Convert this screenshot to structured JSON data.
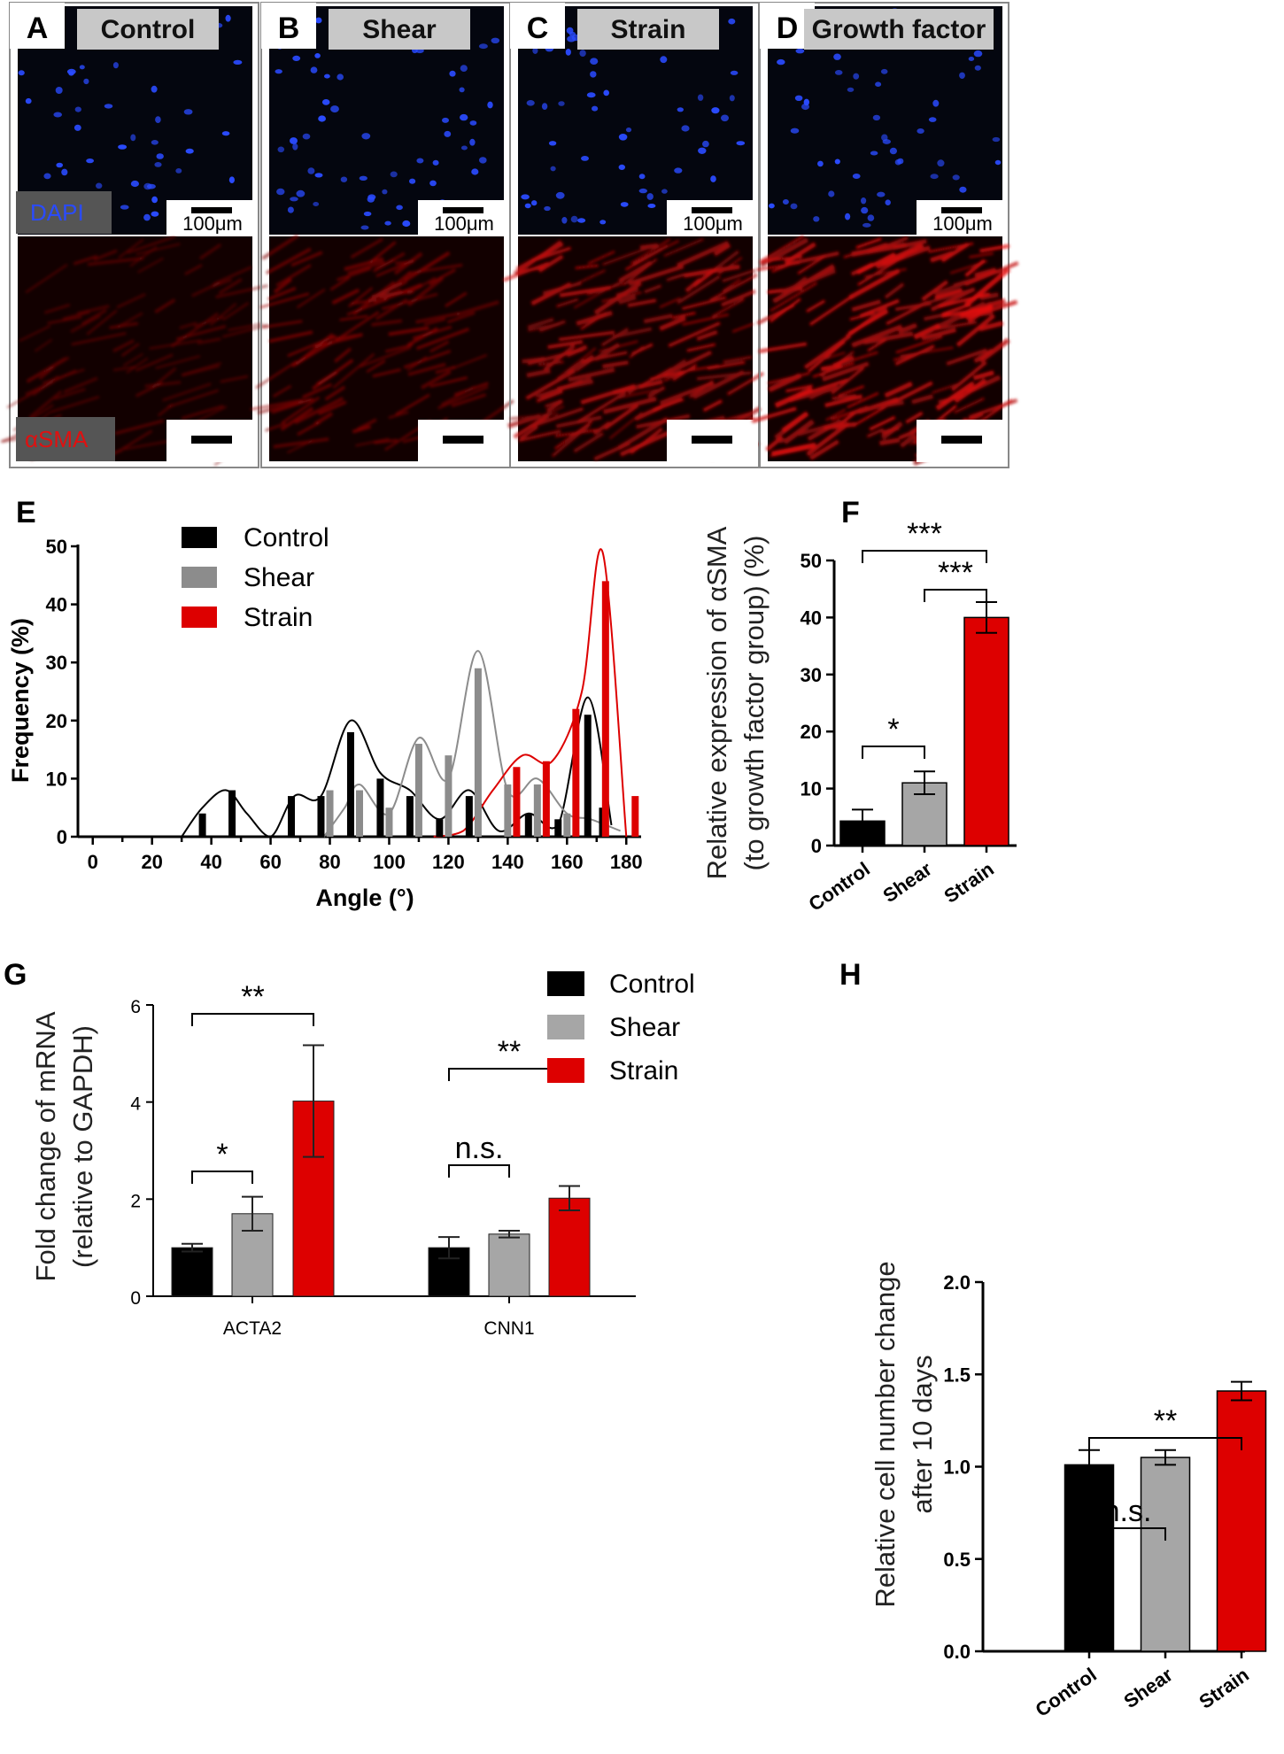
{
  "panels": {
    "top": [
      {
        "letter": "A",
        "title": "Control",
        "nuc": 55,
        "red": 0.35
      },
      {
        "letter": "B",
        "title": "Shear",
        "nuc": 60,
        "red": 0.55
      },
      {
        "letter": "C",
        "title": "Strain",
        "nuc": 65,
        "red": 0.85
      },
      {
        "letter": "D",
        "title": "Growth factor",
        "nuc": 58,
        "red": 1.0
      }
    ],
    "stain_dapi": "DAPI",
    "stain_asma": "αSMA",
    "scale_label": "100μm",
    "colors": {
      "dapi": "#2a4bff",
      "asma": "#e01010",
      "dark": "#04060f"
    }
  },
  "letters": {
    "E": "E",
    "F": "F",
    "G": "G",
    "H": "H"
  },
  "chart_data": [
    {
      "id": "E",
      "type": "bar",
      "xlabel": "Angle (°)",
      "ylabel": "Frequency (%)",
      "xlim": [
        -5,
        185
      ],
      "ylim": [
        0,
        50
      ],
      "xticks": [
        0,
        20,
        40,
        60,
        80,
        100,
        120,
        140,
        160,
        180
      ],
      "yticks": [
        0,
        10,
        20,
        30,
        40,
        50
      ],
      "legend": [
        "Control",
        "Shear",
        "Strain"
      ],
      "colors": [
        "#000000",
        "#8c8c8c",
        "#dd0000"
      ],
      "series": [
        {
          "name": "Control",
          "x": [
            37,
            47,
            67,
            77,
            87,
            97,
            107,
            117,
            127,
            147,
            157,
            167,
            172
          ],
          "values": [
            4,
            8,
            7,
            7,
            18,
            10,
            7,
            3,
            7,
            4,
            3,
            21,
            5
          ]
        },
        {
          "name": "Shear",
          "x": [
            80,
            90,
            100,
            110,
            120,
            130,
            140,
            150,
            160
          ],
          "values": [
            8,
            8,
            5,
            16,
            14,
            29,
            9,
            9,
            4
          ]
        },
        {
          "name": "Strain",
          "x": [
            143,
            153,
            163,
            173,
            183
          ],
          "values": [
            12,
            13,
            22,
            44,
            7
          ]
        }
      ],
      "curves": [
        {
          "name": "Control",
          "x": [
            30,
            37,
            45,
            52,
            60,
            68,
            77,
            87,
            97,
            107,
            117,
            127,
            137,
            147,
            157,
            167,
            175
          ],
          "y": [
            0,
            5,
            8,
            4,
            0,
            7,
            7,
            20,
            11,
            8,
            3,
            8,
            1,
            4,
            2,
            24,
            2
          ]
        },
        {
          "name": "Shear",
          "x": [
            78,
            85,
            90,
            100,
            110,
            120,
            130,
            140,
            150,
            160,
            168,
            178
          ],
          "y": [
            0,
            5,
            9,
            4,
            17,
            10,
            32,
            8,
            10,
            4,
            3,
            1
          ]
        },
        {
          "name": "Strain",
          "x": [
            115,
            125,
            135,
            145,
            155,
            165,
            172,
            180
          ],
          "y": [
            0,
            1,
            8,
            14,
            13,
            25,
            49,
            0
          ]
        }
      ]
    },
    {
      "id": "F",
      "type": "bar",
      "categories": [
        "Control",
        "Shear",
        "Strain"
      ],
      "values": [
        4.3,
        11,
        40
      ],
      "errors": [
        2,
        2,
        2.7
      ],
      "colors": [
        "#000000",
        "#a6a6a6",
        "#dd0000"
      ],
      "ylabel_line1": "Relative expression of αSMA",
      "ylabel_line2": "(to growth factor group) (%)",
      "ylim": [
        0,
        50
      ],
      "yticks": [
        0,
        10,
        20,
        30,
        40,
        50
      ],
      "significance": [
        {
          "from": 0,
          "to": 1,
          "label": "*"
        },
        {
          "from": 1,
          "to": 2,
          "label": "***"
        },
        {
          "from": 0,
          "to": 2,
          "label": "***"
        }
      ]
    },
    {
      "id": "G",
      "type": "bar",
      "groups": [
        "ACTA2",
        "CNN1"
      ],
      "legend": [
        "Control",
        "Shear",
        "Strain"
      ],
      "colors": [
        "#000000",
        "#a6a6a6",
        "#dd0000"
      ],
      "series": [
        {
          "name": "Control",
          "values": [
            1.0,
            1.0
          ],
          "errors": [
            0.08,
            0.22
          ]
        },
        {
          "name": "Shear",
          "values": [
            1.7,
            1.28
          ],
          "errors": [
            0.35,
            0.07
          ]
        },
        {
          "name": "Strain",
          "values": [
            4.02,
            2.02
          ],
          "errors": [
            1.15,
            0.25
          ]
        }
      ],
      "ylabel_line1": "Fold change of mRNA",
      "ylabel_line2": "(relative to GAPDH)",
      "ylim": [
        0,
        6
      ],
      "yticks": [
        0,
        2,
        4,
        6
      ],
      "significance": [
        {
          "group": 0,
          "from": 0,
          "to": 1,
          "label": "*"
        },
        {
          "group": 0,
          "from": 0,
          "to": 2,
          "label": "**"
        },
        {
          "group": 1,
          "from": 0,
          "to": 1,
          "label": "n.s."
        },
        {
          "group": 1,
          "from": 0,
          "to": 2,
          "label": "**"
        }
      ]
    },
    {
      "id": "H",
      "type": "bar",
      "categories": [
        "Control",
        "Shear",
        "Strain"
      ],
      "values": [
        1.01,
        1.05,
        1.41
      ],
      "errors": [
        0.08,
        0.04,
        0.05
      ],
      "colors": [
        "#000000",
        "#a6a6a6",
        "#dd0000"
      ],
      "ylabel_line1": "Relative cell number change",
      "ylabel_line2": "after 10 days",
      "ylim": [
        0,
        2
      ],
      "yticks": [
        "0.0",
        "0.5",
        "1.0",
        "1.5",
        "2.0"
      ],
      "significance": [
        {
          "from": 0,
          "to": 1,
          "label": "n.s."
        },
        {
          "from": 0,
          "to": 2,
          "label": "**"
        }
      ]
    }
  ]
}
